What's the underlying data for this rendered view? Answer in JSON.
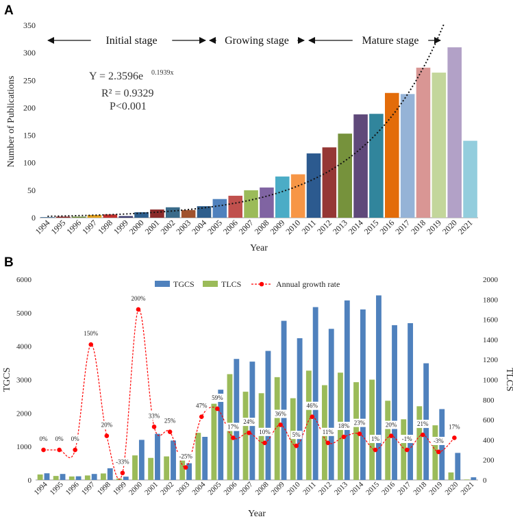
{
  "chart_data": [
    {
      "panel": "A",
      "type": "bar",
      "categories": [
        "1994",
        "1995",
        "1996",
        "1997",
        "1998",
        "1999",
        "2000",
        "2001",
        "2002",
        "2003",
        "2004",
        "2005",
        "2006",
        "2007",
        "2008",
        "2009",
        "2010",
        "2011",
        "2012",
        "2013",
        "2014",
        "2015",
        "2016",
        "2017",
        "2018",
        "2019",
        "2020",
        "2021"
      ],
      "values": [
        1,
        2,
        2,
        5,
        6,
        3,
        10,
        15,
        19,
        14,
        21,
        34,
        40,
        50,
        55,
        75,
        79,
        117,
        128,
        153,
        188,
        189,
        227,
        225,
        273,
        264,
        310,
        140
      ],
      "bar_colors": [
        "#2E5E8C",
        "#8B2B2B",
        "#6E8A3A",
        "#E0A020",
        "#C0302D",
        "#3B3B6E",
        "#2E5E8C",
        "#8B2B2B",
        "#3A6B8A",
        "#A0522D",
        "#2E5E8C",
        "#4F81BD",
        "#C0504D",
        "#9BBB59",
        "#8064A2",
        "#4BACC6",
        "#F79646",
        "#2C5A8F",
        "#953735",
        "#76923C",
        "#5F497A",
        "#31859C",
        "#E36C09",
        "#95B3D7",
        "#D99694",
        "#C3D69B",
        "#B2A1C7",
        "#93CDDD"
      ],
      "xlabel": "Year",
      "ylabel": "Number of Publications",
      "ylim": [
        0,
        350
      ],
      "yticks": [
        0,
        50,
        100,
        150,
        200,
        250,
        300,
        350
      ],
      "trend": {
        "a": 2.3596,
        "b": 0.1939
      },
      "annotations": [
        "Y = 2.3596e",
        "0.1939x",
        "R² = 0.9329",
        "P<0.001"
      ],
      "stages": [
        "Initial stage",
        "Growing stage",
        "Mature stage"
      ],
      "panel_label": "A"
    },
    {
      "panel": "B",
      "type": "bar",
      "categories": [
        "1994",
        "1995",
        "1996",
        "1997",
        "1998",
        "1999",
        "2000",
        "2001",
        "2002",
        "2003",
        "2004",
        "2005",
        "2006",
        "2007",
        "2008",
        "2009",
        "2010",
        "2011",
        "2012",
        "2013",
        "2014",
        "2015",
        "2016",
        "2017",
        "2018",
        "2019",
        "2020",
        "2021"
      ],
      "series": [
        {
          "name": "TGCS",
          "axis": "left",
          "color": "#4F81BD",
          "values": [
            200,
            180,
            110,
            180,
            350,
            100,
            1200,
            1380,
            1180,
            500,
            1290,
            2700,
            3620,
            3540,
            3860,
            4760,
            4240,
            5170,
            4520,
            5370,
            5100,
            5520,
            4630,
            4690,
            3490,
            2120,
            810,
            80
          ]
        },
        {
          "name": "TLCS",
          "axis": "right",
          "color": "#9BBB59",
          "values": [
            55,
            40,
            35,
            45,
            65,
            15,
            245,
            220,
            235,
            200,
            470,
            760,
            1055,
            880,
            865,
            1025,
            815,
            1090,
            945,
            1070,
            975,
            1000,
            790,
            605,
            735,
            545,
            75,
            5
          ]
        },
        {
          "name": "Annual growth rate",
          "color": "#FF0000",
          "marker_values": [
            300,
            300,
            300,
            1350,
            440,
            70,
            1700,
            530,
            480,
            125,
            630,
            710,
            420,
            470,
            370,
            550,
            340,
            630,
            370,
            430,
            460,
            300,
            440,
            300,
            450,
            280,
            420
          ],
          "labels": [
            "0%",
            "0%",
            "0%",
            "150%",
            "20%",
            "-33%",
            "200%",
            "33%",
            "25%",
            "-25%",
            "47%",
            "59%",
            "17%",
            "24%",
            "10%",
            "36%",
            "5%",
            "46%",
            "11%",
            "18%",
            "23%",
            "1%",
            "20%",
            "-1%",
            "21%",
            "-3%",
            "17%"
          ]
        }
      ],
      "xlabel": "Year",
      "ylabel_left": "TGCS",
      "ylabel_right": "TLCS",
      "ylim_left": [
        0,
        6000
      ],
      "ylim_right": [
        0,
        2000
      ],
      "yticks_left": [
        0,
        1000,
        2000,
        3000,
        4000,
        5000,
        6000
      ],
      "yticks_right": [
        0,
        200,
        400,
        600,
        800,
        1000,
        1200,
        1400,
        1600,
        1800,
        2000
      ],
      "legend": [
        "TGCS",
        "TLCS",
        "Annual growth rate"
      ],
      "panel_label": "B"
    }
  ]
}
